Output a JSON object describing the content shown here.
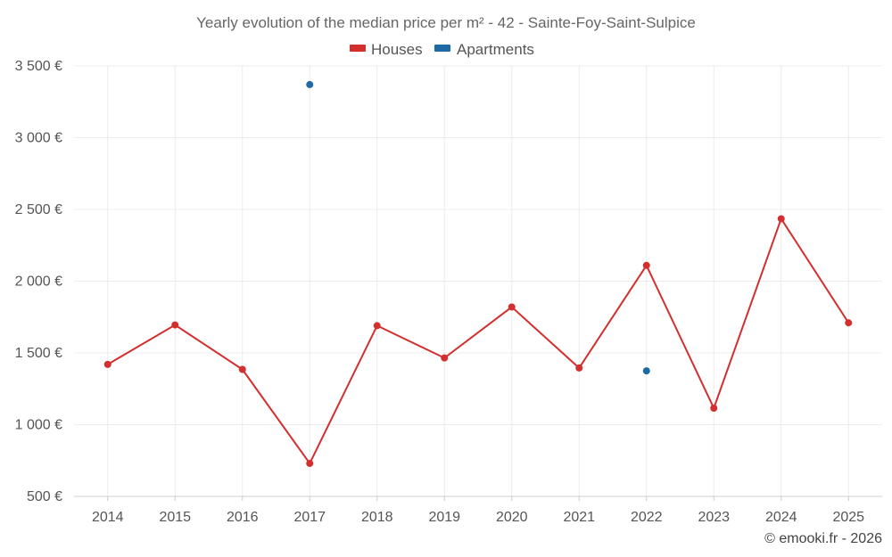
{
  "chart_data": {
    "type": "line",
    "title": "Yearly evolution of the median price per m² - 42 - Sainte-Foy-Saint-Sulpice",
    "categories": [
      "2014",
      "2015",
      "2016",
      "2017",
      "2018",
      "2019",
      "2020",
      "2021",
      "2022",
      "2023",
      "2024",
      "2025"
    ],
    "series": [
      {
        "name": "Houses",
        "color": "#d32f2f",
        "values": [
          1420,
          1695,
          1385,
          730,
          1690,
          1465,
          1820,
          1395,
          2110,
          1115,
          2435,
          1710
        ]
      },
      {
        "name": "Apartments",
        "color": "#1f6aa5",
        "values": [
          null,
          null,
          null,
          3370,
          null,
          null,
          null,
          null,
          1375,
          null,
          null,
          null
        ]
      }
    ],
    "y_ticks": [
      500,
      1000,
      1500,
      2000,
      2500,
      3000,
      3500
    ],
    "y_tick_labels": [
      "500 €",
      "1 000 €",
      "1 500 €",
      "2 000 €",
      "2 500 €",
      "3 000 €",
      "3 500 €"
    ],
    "ylim": [
      500,
      3500
    ],
    "xlabel": "",
    "ylabel": "",
    "legend_position": "top-center",
    "grid": true
  },
  "credit": "© emooki.fr - 2026"
}
